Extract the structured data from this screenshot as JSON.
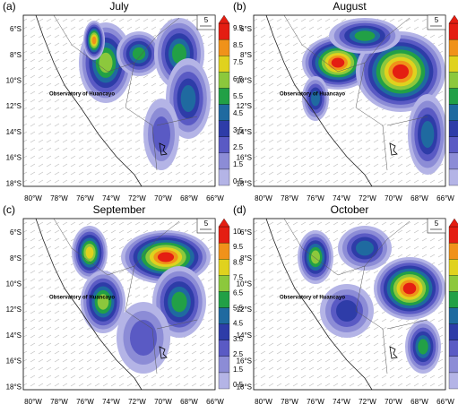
{
  "panels": [
    {
      "label": "(a)",
      "month": "July",
      "vector_ref": "5",
      "station": "Observatory of Huancayo",
      "yticks": [
        "6°S",
        "8°S",
        "10°S",
        "12°S",
        "14°S",
        "16°S",
        "18°S"
      ],
      "xticks": [
        "80°W",
        "78°W",
        "76°W",
        "74°W",
        "72°W",
        "70°W",
        "68°W",
        "66°W"
      ],
      "colorbar": [
        "9.5",
        "8.5",
        "7.5",
        "6.5",
        "5.5",
        "4.5",
        "3.5",
        "2.5",
        "1.5",
        "0.5"
      ]
    },
    {
      "label": "(b)",
      "month": "August",
      "vector_ref": "5",
      "station": "Observatory of Huancayo",
      "yticks": [
        "6°S",
        "8°S",
        "10°S",
        "12°S",
        "14°S",
        "16°S",
        "18°S"
      ],
      "xticks": [
        "80°W",
        "78°W",
        "76°W",
        "74°W",
        "72°W",
        "70°W",
        "68°W",
        "66°W"
      ],
      "colorbar": [
        "10",
        "9.5",
        "8.5",
        "7.5",
        "6.5",
        "5.5",
        "4.5",
        "3.5",
        "2.5",
        "1.5",
        "0.5"
      ]
    },
    {
      "label": "(c)",
      "month": "September",
      "vector_ref": "5",
      "station": "Observatory of Huancayo",
      "yticks": [
        "6°S",
        "8°S",
        "10°S",
        "12°S",
        "14°S",
        "16°S",
        "18°S"
      ],
      "xticks": [
        "80°W",
        "78°W",
        "76°W",
        "74°W",
        "72°W",
        "70°W",
        "68°W",
        "66°W"
      ],
      "colorbar": [
        "10",
        "9.5",
        "8.5",
        "7.5",
        "6.5",
        "5.5",
        "4.5",
        "3.5",
        "2.5",
        "1.5",
        "0.5"
      ]
    },
    {
      "label": "(d)",
      "month": "October",
      "vector_ref": "5",
      "station": "Observatory of Huancayo",
      "yticks": [
        "6°S",
        "8°S",
        "10°S",
        "12°S",
        "14°S",
        "16°S",
        "18°S"
      ],
      "xticks": [
        "80°W",
        "78°W",
        "76°W",
        "74°W",
        "72°W",
        "70°W",
        "68°W",
        "66°W"
      ],
      "colorbar": [
        "10",
        "9.5",
        "8.5",
        "7.5",
        "6.5",
        "5.5",
        "4.5",
        "3.5",
        "2.5",
        "1.5",
        "0.5"
      ]
    }
  ]
}
